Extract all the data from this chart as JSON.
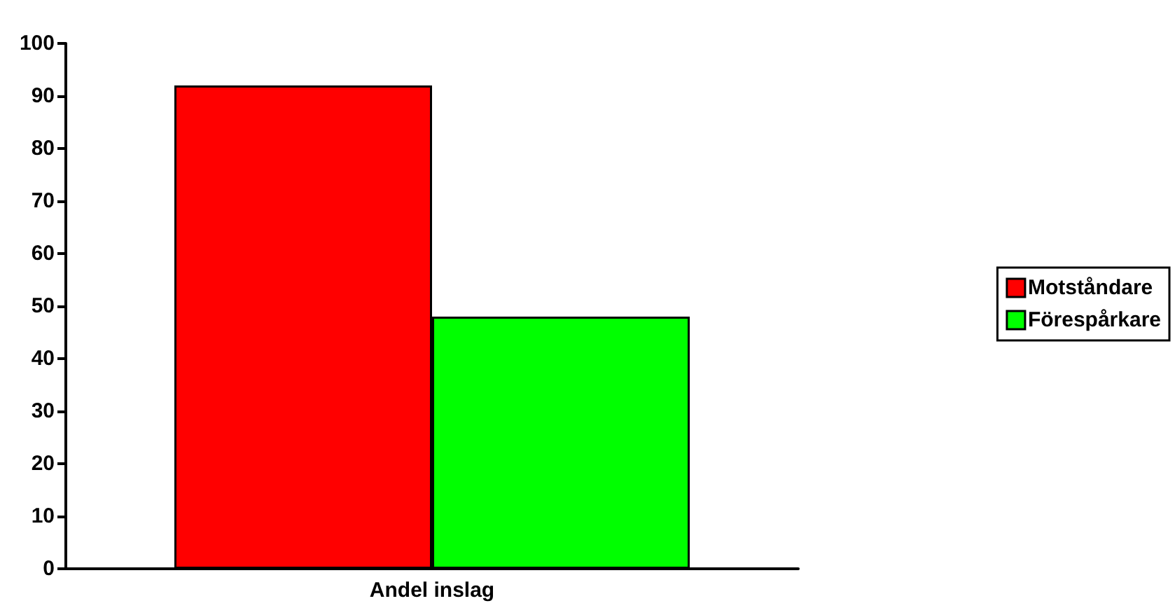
{
  "chart_data": {
    "type": "bar",
    "categories": [
      "Andel inslag"
    ],
    "series": [
      {
        "name": "Motståndare",
        "color": "#ff0000",
        "values": [
          92
        ]
      },
      {
        "name": "Förespårkare",
        "color": "#00ff00",
        "values": [
          48
        ]
      }
    ],
    "ylim": [
      0,
      100
    ],
    "yticks": [
      0,
      10,
      20,
      30,
      40,
      50,
      60,
      70,
      80,
      90,
      100
    ],
    "grid": false,
    "legend": "right"
  }
}
